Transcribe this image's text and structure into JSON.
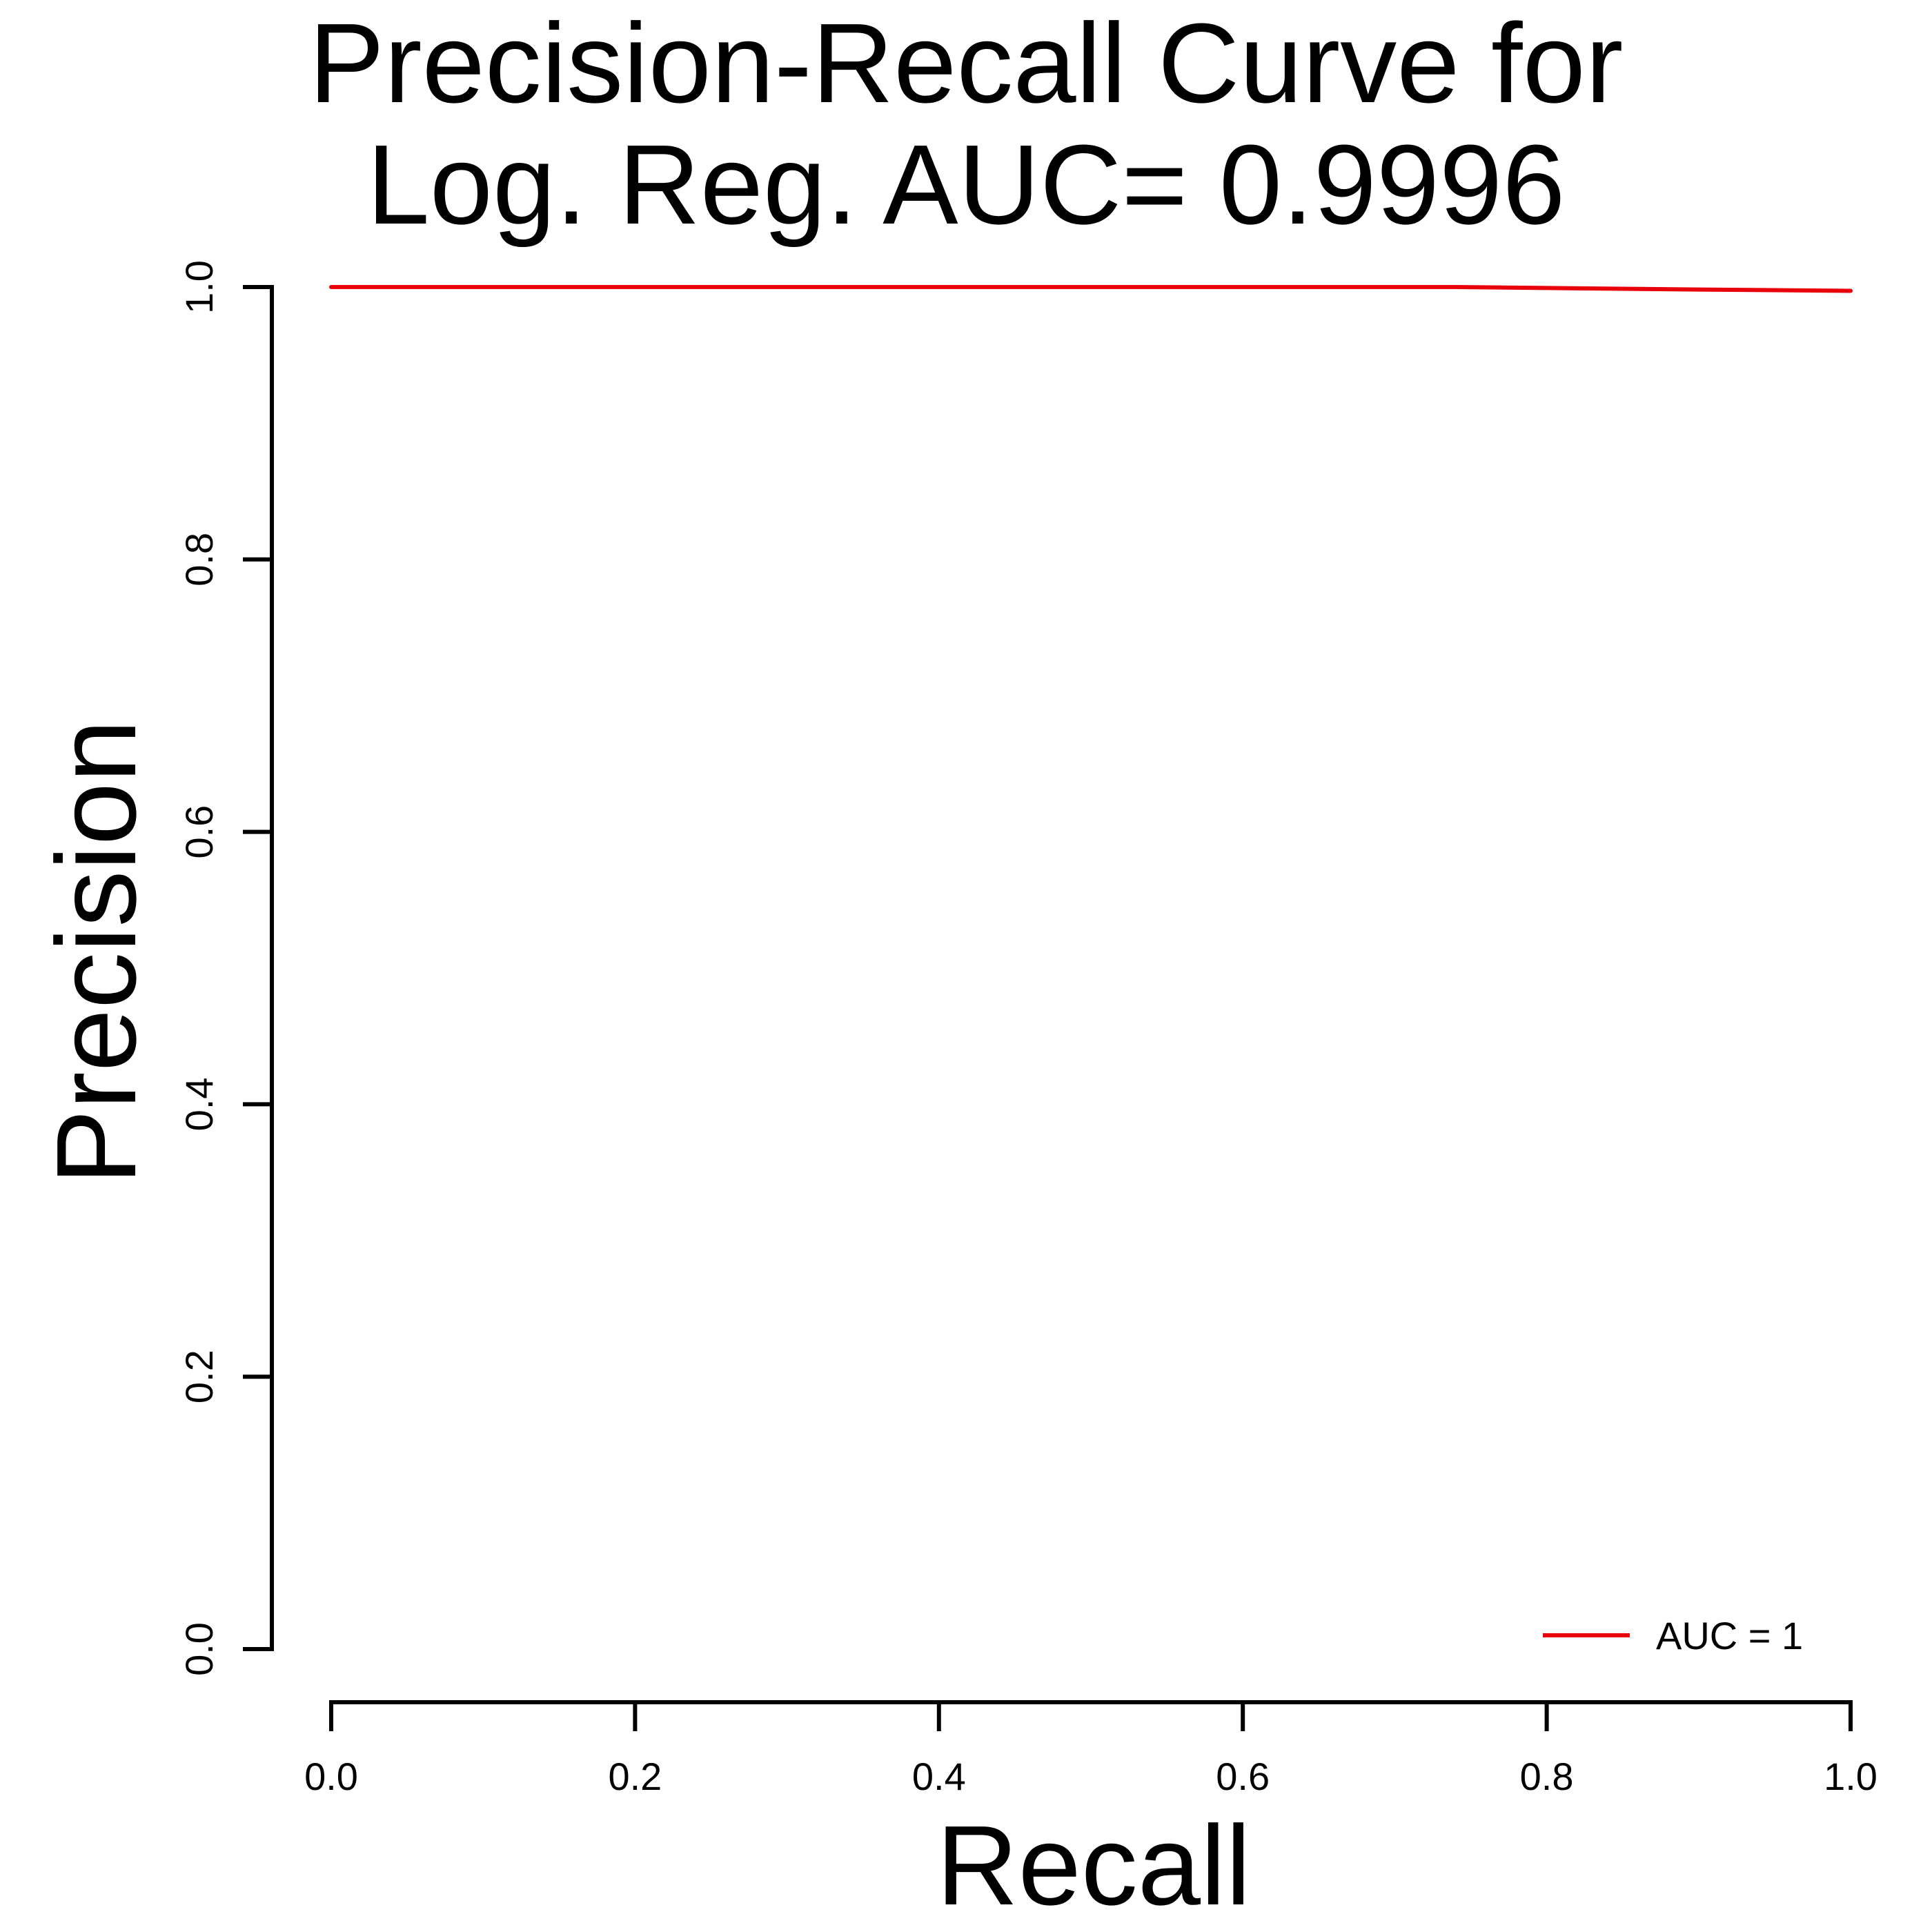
{
  "chart_data": {
    "type": "line",
    "title_lines": [
      "Precision-Recall Curve for",
      "Log. Reg. AUC= 0.9996"
    ],
    "xlabel": "Recall",
    "ylabel": "Precision",
    "xlim": [
      0,
      1
    ],
    "ylim": [
      0,
      1
    ],
    "x_ticks": [
      "0.0",
      "0.2",
      "0.4",
      "0.6",
      "0.8",
      "1.0"
    ],
    "y_ticks": [
      "0.0",
      "0.2",
      "0.4",
      "0.6",
      "0.8",
      "1.0"
    ],
    "grid": false,
    "legend_position": "bottom-right",
    "legend": [
      {
        "label": "AUC = 1",
        "color": "#e8000b"
      }
    ],
    "series": [
      {
        "color": "#e8000b",
        "x": [
          0.0,
          0.2,
          0.4,
          0.6,
          0.74,
          0.8,
          0.9,
          1.0
        ],
        "y": [
          1.0,
          1.0,
          1.0,
          1.0,
          1.0,
          0.9993,
          0.9982,
          0.9972
        ]
      }
    ]
  }
}
